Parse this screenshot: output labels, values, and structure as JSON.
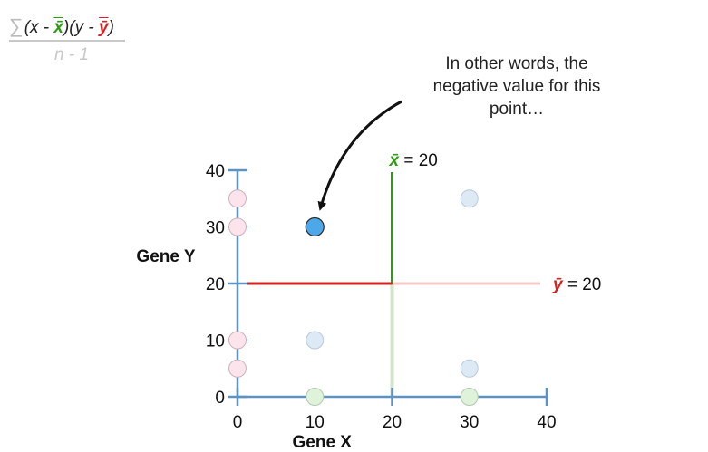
{
  "formula": {
    "sigma": "∑",
    "numerator_parts": [
      "(x - ",
      "x̄",
      ")(y - ",
      "ȳ",
      ")"
    ],
    "denominator": "n - 1"
  },
  "annotation": {
    "lines": [
      "In other words, the",
      "negative value for this",
      "point…"
    ]
  },
  "colors": {
    "axis": "#5b93c4",
    "xbar": "#2a9d10",
    "ybar": "#d42222",
    "xbar_faded": "#cfe6c8",
    "ybar_faded": "#f7c9c6",
    "highlight_point": "#4da8ea",
    "faded_point": "#ddeaf6",
    "x_marginal": "#def3d9",
    "y_marginal": "#fde3ec"
  },
  "chart_data": {
    "type": "scatter",
    "xlabel": "Gene X",
    "ylabel": "Gene Y",
    "xlim": [
      0,
      40
    ],
    "ylim": [
      0,
      40
    ],
    "xticks": [
      0,
      10,
      20,
      30,
      40
    ],
    "yticks": [
      0,
      10,
      20,
      30,
      40
    ],
    "highlighted_point": {
      "x": 10,
      "y": 30
    },
    "faded_points": [
      {
        "x": 30,
        "y": 35
      },
      {
        "x": 10,
        "y": 10
      },
      {
        "x": 30,
        "y": 5
      }
    ],
    "x_marginal_points": [
      10,
      30
    ],
    "y_marginal_points": [
      5,
      10,
      30,
      35
    ],
    "mean_x": {
      "value": 20,
      "label": "= 20",
      "symbol": "x̄"
    },
    "mean_y": {
      "value": 20,
      "label": "= 20",
      "symbol": "ȳ"
    }
  }
}
